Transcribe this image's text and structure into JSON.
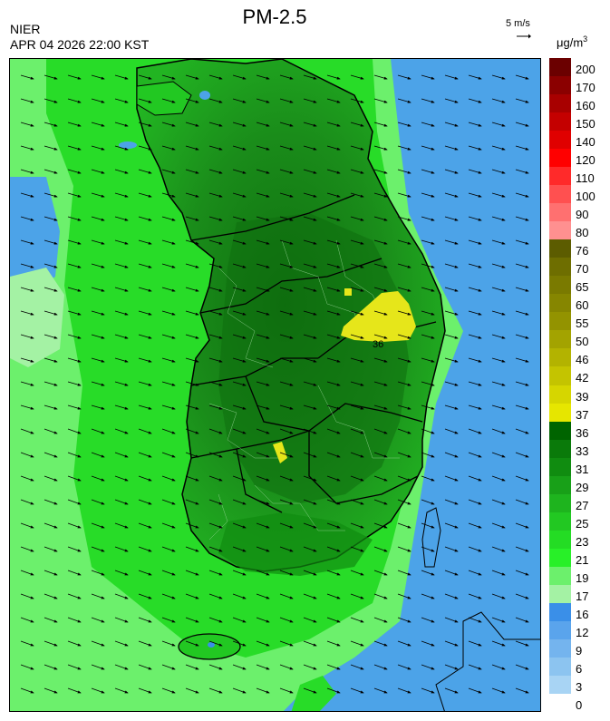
{
  "header": {
    "title": "PM-2.5",
    "agency": "NIER",
    "timestamp": "APR 04 2026 22:00 KST",
    "reference_vector_label": "5 m/s",
    "unit_prefix": "μg/m",
    "unit_exponent": "3"
  },
  "map": {
    "contour_label": "36",
    "wind_direction": "west-northwest to east-southeast",
    "sea_color": "#4ca3e8",
    "land_color": "#1e8c1e",
    "hotspot_color": "#e6e61a"
  },
  "colorbar": {
    "ticks": [
      "200",
      "170",
      "160",
      "150",
      "140",
      "120",
      "110",
      "100",
      "90",
      "80",
      "76",
      "70",
      "65",
      "60",
      "55",
      "50",
      "46",
      "42",
      "39",
      "37",
      "36",
      "33",
      "31",
      "29",
      "27",
      "25",
      "23",
      "21",
      "19",
      "17",
      "16",
      "12",
      "9",
      "6",
      "3",
      "0"
    ],
    "colors": [
      "#6b0000",
      "#8b0000",
      "#a80000",
      "#c40000",
      "#e00000",
      "#ff0000",
      "#ff2a2a",
      "#ff5050",
      "#ff7070",
      "#ff9090",
      "#5c5c00",
      "#6e6e00",
      "#7a7a00",
      "#868600",
      "#939300",
      "#a3a300",
      "#b3b300",
      "#c4c400",
      "#d6d600",
      "#e6e600",
      "#006400",
      "#0a7a0a",
      "#108c10",
      "#18a018",
      "#1eb41e",
      "#22c822",
      "#24dc24",
      "#28f028",
      "#6cf06c",
      "#a4f2a4",
      "#3a8fe8",
      "#5aa4ec",
      "#74b4ee",
      "#8cc4f0",
      "#a8d4f4"
    ]
  }
}
